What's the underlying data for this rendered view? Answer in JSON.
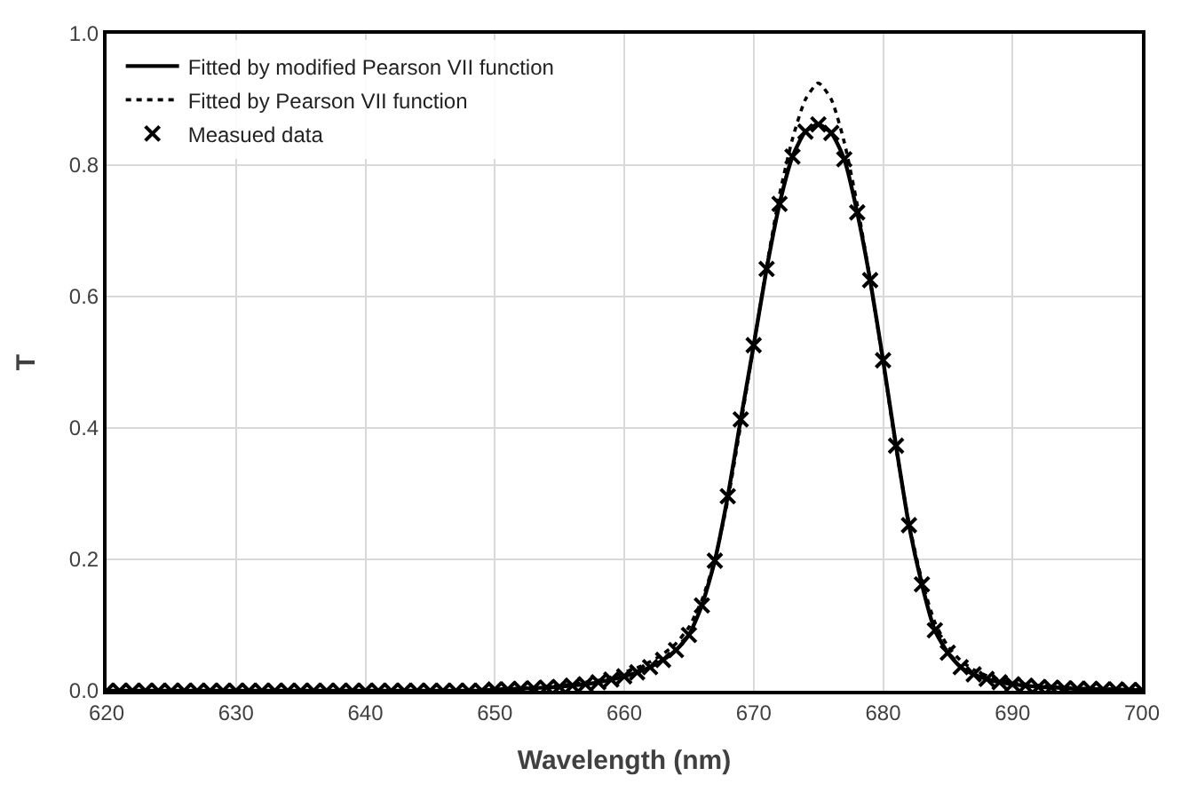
{
  "chart_data": {
    "type": "line",
    "xlabel": "Wavelength (nm)",
    "ylabel": "T",
    "x": [
      620,
      621,
      622,
      623,
      624,
      625,
      626,
      627,
      628,
      629,
      630,
      631,
      632,
      633,
      634,
      635,
      636,
      637,
      638,
      639,
      640,
      641,
      642,
      643,
      644,
      645,
      646,
      647,
      648,
      649,
      650,
      651,
      652,
      653,
      654,
      655,
      656,
      657,
      658,
      659,
      660,
      661,
      662,
      663,
      664,
      665,
      666,
      667,
      668,
      669,
      670,
      671,
      672,
      673,
      674,
      675,
      676,
      677,
      678,
      679,
      680,
      681,
      682,
      683,
      684,
      685,
      686,
      687,
      688,
      689,
      690,
      691,
      692,
      693,
      694,
      695,
      696,
      697,
      698,
      699,
      700
    ],
    "series": [
      {
        "name": "Fitted by modified Pearson VII function",
        "color": "#000000",
        "line_style": "solid",
        "marker": "none",
        "values": [
          0,
          0,
          0,
          0,
          0,
          0,
          0,
          0,
          0,
          0,
          0,
          0,
          0,
          0,
          0,
          0,
          0,
          0,
          0,
          0,
          0,
          0,
          0,
          0,
          0,
          0,
          0,
          0,
          0,
          0,
          0.002,
          0.002,
          0.003,
          0.004,
          0.005,
          0.006,
          0.008,
          0.01,
          0.013,
          0.017,
          0.022,
          0.028,
          0.036,
          0.047,
          0.062,
          0.085,
          0.13,
          0.198,
          0.296,
          0.413,
          0.526,
          0.642,
          0.741,
          0.813,
          0.851,
          0.862,
          0.849,
          0.809,
          0.728,
          0.625,
          0.503,
          0.373,
          0.252,
          0.162,
          0.092,
          0.058,
          0.036,
          0.025,
          0.018,
          0.013,
          0.01,
          0.008,
          0.006,
          0.005,
          0.004,
          0.003,
          0.003,
          0.002,
          0.002,
          0.001,
          0.001
        ]
      },
      {
        "name": "Fitted by Pearson VII function",
        "color": "#000000",
        "line_style": "dotted",
        "marker": "none",
        "values": [
          0,
          0,
          0,
          0,
          0,
          0,
          0,
          0,
          0,
          0,
          0,
          0,
          0,
          0,
          0,
          0,
          0,
          0,
          0,
          0,
          0,
          0,
          0,
          0,
          0,
          0,
          0,
          0,
          0,
          0.002,
          0.003,
          0.003,
          0.004,
          0.005,
          0.006,
          0.008,
          0.01,
          0.013,
          0.016,
          0.021,
          0.028,
          0.035,
          0.044,
          0.056,
          0.072,
          0.097,
          0.138,
          0.2,
          0.29,
          0.405,
          0.525,
          0.645,
          0.755,
          0.84,
          0.9,
          0.925,
          0.9,
          0.835,
          0.74,
          0.625,
          0.5,
          0.37,
          0.255,
          0.168,
          0.104,
          0.068,
          0.046,
          0.032,
          0.023,
          0.017,
          0.013,
          0.01,
          0.008,
          0.006,
          0.005,
          0.004,
          0.003,
          0.003,
          0.002,
          0.002,
          0.002
        ]
      },
      {
        "name": "Measued data",
        "color": "#000000",
        "type": "scatter",
        "marker": "cross",
        "values": [
          0,
          0,
          0,
          0,
          0,
          0,
          0,
          0,
          0,
          0,
          0,
          0,
          0,
          0,
          0,
          0,
          0,
          0,
          0,
          0,
          0,
          0,
          0,
          0,
          0,
          0,
          0,
          0,
          0,
          0,
          0.002,
          0.002,
          0.003,
          0.004,
          0.005,
          0.006,
          0.008,
          0.01,
          0.013,
          0.017,
          0.022,
          0.028,
          0.036,
          0.047,
          0.062,
          0.085,
          0.13,
          0.198,
          0.296,
          0.413,
          0.526,
          0.642,
          0.741,
          0.813,
          0.851,
          0.862,
          0.849,
          0.809,
          0.728,
          0.625,
          0.503,
          0.373,
          0.252,
          0.162,
          0.092,
          0.058,
          0.036,
          0.025,
          0.018,
          0.013,
          0.01,
          0.008,
          0.006,
          0.005,
          0.004,
          0.003,
          0.003,
          0.002,
          0.002,
          0.001,
          0.001
        ]
      }
    ],
    "xlim": [
      620,
      700
    ],
    "xticks": [
      620,
      630,
      640,
      650,
      660,
      670,
      680,
      690,
      700
    ],
    "ylim": [
      0,
      1.0
    ],
    "yticks": [
      {
        "value": 0,
        "label": "0.0"
      },
      {
        "value": 0.2,
        "label": "0.2"
      },
      {
        "value": 0.4,
        "label": "0.4"
      },
      {
        "value": 0.6,
        "label": "0.6"
      },
      {
        "value": 0.8,
        "label": "0.8"
      },
      {
        "value": 1.0,
        "label": "1.0"
      }
    ],
    "grid": true,
    "legend": "top left"
  }
}
